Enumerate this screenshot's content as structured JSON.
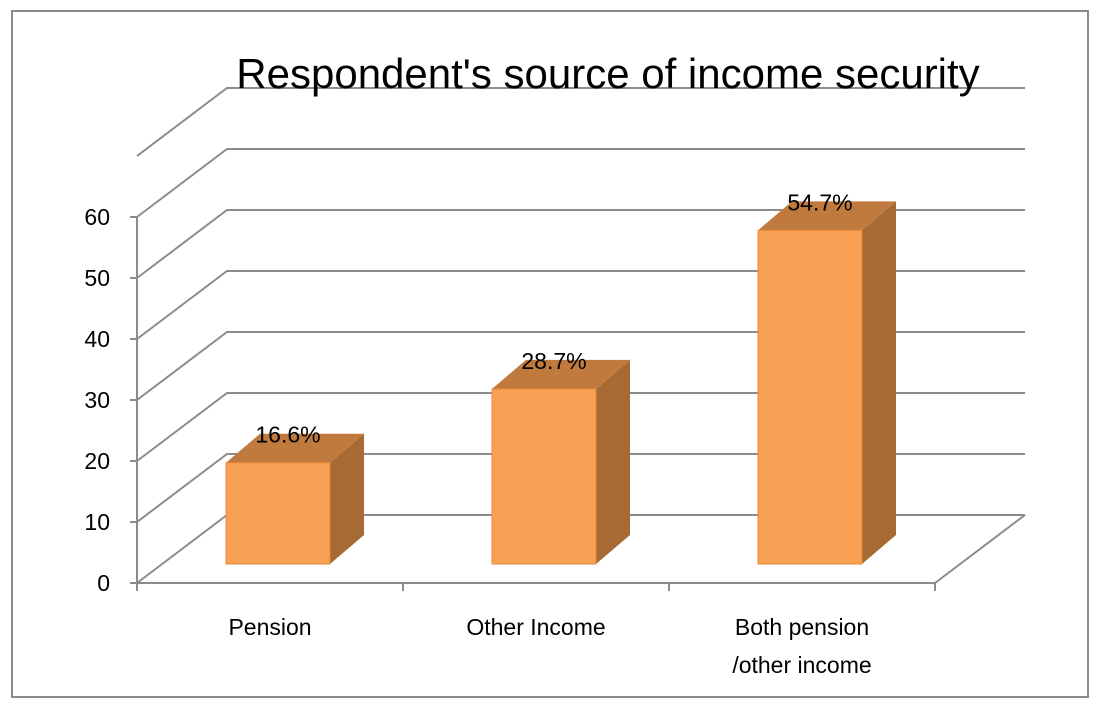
{
  "chart_data": {
    "type": "bar",
    "title": "Respondent's source of income security",
    "categories": [
      "Pension",
      "Other Income",
      "Both pension /other income"
    ],
    "category_lines": [
      [
        "Pension"
      ],
      [
        "Other Income"
      ],
      [
        "Both pension",
        "/other income"
      ]
    ],
    "values": [
      16.6,
      28.7,
      54.7
    ],
    "data_labels": [
      "16.6%",
      "28.7%",
      "54.7%"
    ],
    "yticks": [
      "0",
      "10",
      "20",
      "30",
      "40",
      "50",
      "60"
    ],
    "ylim": [
      0,
      70
    ],
    "xlabel": "",
    "ylabel": "",
    "grid": true,
    "legend": "none",
    "style": "3d-column",
    "colors": {
      "bar_front": "#F79F52",
      "bar_top": "#C07A3D",
      "bar_side": "#A66A32",
      "bar_edge": "#E8893A",
      "gridline": "#8c8c8c",
      "axis": "#8c8c8c"
    }
  }
}
